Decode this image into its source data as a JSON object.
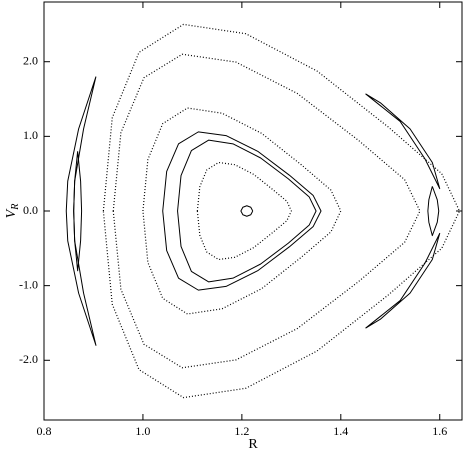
{
  "chart_data": {
    "type": "line",
    "xlabel": "R",
    "ylabel": "V",
    "ylabel_sub": "R",
    "xlim": [
      0.8,
      1.645
    ],
    "ylim": [
      -2.8,
      2.8
    ],
    "xticks": [
      0.8,
      {
        "value": 1,
        "label": "1.0"
      },
      1.2,
      1.4,
      1.6
    ],
    "yticks": [
      {
        "value": -2,
        "label": "-2.0"
      },
      {
        "value": -1,
        "label": "-1.0"
      },
      {
        "value": 0,
        "label": "0.0"
      },
      {
        "value": 1,
        "label": "1.0"
      },
      {
        "value": 2,
        "label": "2.0"
      }
    ],
    "series": [
      {
        "color": "#000000",
        "line_style": "dotted",
        "x": [
          0.92,
          0.938,
          0.992,
          1.082,
          1.208,
          1.352,
          1.496,
          1.604,
          1.64,
          1.604,
          1.496,
          1.352,
          1.208,
          1.082,
          0.992,
          0.938,
          0.92
        ],
        "y": [
          0,
          1.25,
          2.125,
          2.5,
          2.375,
          1.875,
          1.125,
          0.5,
          0,
          -0.5,
          -1.125,
          -1.875,
          -2.375,
          -2.5,
          -2.125,
          -1.25,
          0
        ]
      },
      {
        "color": "#000000",
        "line_style": "dotted",
        "x": [
          0.94,
          0.9555,
          1.002,
          1.0795,
          1.188,
          1.312,
          1.436,
          1.529,
          1.56,
          1.529,
          1.436,
          1.312,
          1.188,
          1.0795,
          1.002,
          0.9555,
          0.94
        ],
        "y": [
          0,
          1.05,
          1.785,
          2.1,
          1.995,
          1.575,
          0.945,
          0.42,
          0,
          -0.42,
          -0.945,
          -1.575,
          -1.995,
          -2.1,
          -1.785,
          -1.05,
          0
        ]
      },
      {
        "color": "#000000",
        "line_style": "dotted",
        "x": [
          1.0,
          1.01,
          1.04,
          1.09,
          1.16,
          1.24,
          1.32,
          1.38,
          1.4,
          1.38,
          1.32,
          1.24,
          1.16,
          1.09,
          1.04,
          1.01,
          1.0
        ],
        "y": [
          0,
          0.69,
          1.17,
          1.38,
          1.31,
          1.04,
          0.62,
          0.28,
          0,
          -0.28,
          -0.62,
          -1.04,
          -1.31,
          -1.38,
          -1.17,
          -0.69,
          0
        ]
      },
      {
        "color": "#000000",
        "line_style": "solid",
        "x": [
          1.04,
          1.048,
          1.072,
          1.112,
          1.168,
          1.232,
          1.296,
          1.344,
          1.36,
          1.344,
          1.296,
          1.232,
          1.168,
          1.112,
          1.072,
          1.048,
          1.04
        ],
        "y": [
          0,
          0.53,
          0.9,
          1.06,
          1.01,
          0.8,
          0.48,
          0.21,
          0,
          -0.21,
          -0.48,
          -0.8,
          -1.01,
          -1.06,
          -0.9,
          -0.53,
          0
        ]
      },
      {
        "color": "#000000",
        "line_style": "solid",
        "x": [
          1.07,
          1.077,
          1.098,
          1.133,
          1.182,
          1.238,
          1.294,
          1.336,
          1.35,
          1.336,
          1.294,
          1.238,
          1.182,
          1.133,
          1.098,
          1.077,
          1.07
        ],
        "y": [
          0,
          0.475,
          0.81,
          0.95,
          0.9,
          0.71,
          0.43,
          0.19,
          0,
          -0.19,
          -0.43,
          -0.71,
          -0.9,
          -0.95,
          -0.81,
          -0.475,
          0
        ]
      },
      {
        "color": "#000000",
        "line_style": "dotted",
        "x": [
          1.11,
          1.115,
          1.129,
          1.153,
          1.186,
          1.224,
          1.262,
          1.291,
          1.3,
          1.291,
          1.262,
          1.224,
          1.186,
          1.153,
          1.129,
          1.115,
          1.11
        ],
        "y": [
          0,
          0.325,
          0.55,
          0.65,
          0.62,
          0.49,
          0.29,
          0.13,
          0,
          -0.13,
          -0.29,
          -0.49,
          -0.62,
          -0.65,
          -0.55,
          -0.325,
          0
        ]
      },
      {
        "color": "#000000",
        "line_style": "solid",
        "x": [
          1.222,
          1.218,
          1.21,
          1.202,
          1.198,
          1.202,
          1.21,
          1.218,
          1.222
        ],
        "y": [
          0,
          0.05,
          0.07,
          0.05,
          0,
          -0.05,
          -0.07,
          -0.05,
          0
        ]
      },
      {
        "color": "#000000",
        "line_style": "solid",
        "x": [
          0.905,
          0.87,
          0.848,
          0.845,
          0.848,
          0.87,
          0.905,
          0.88,
          0.862,
          0.86,
          0.862,
          0.88,
          0.905
        ],
        "y": [
          1.8,
          1.1,
          0.4,
          0,
          -0.4,
          -1.1,
          -1.8,
          -1.1,
          -0.4,
          0,
          0.4,
          1.1,
          1.8
        ]
      },
      {
        "color": "#000000",
        "line_style": "solid",
        "x": [
          0.868,
          0.862,
          0.86,
          0.862,
          0.868,
          0.874,
          0.876,
          0.874,
          0.868
        ],
        "y": [
          0.8,
          0.4,
          0,
          -0.4,
          -0.8,
          -0.4,
          0,
          0.4,
          0.8
        ]
      },
      {
        "color": "#000000",
        "line_style": "solid",
        "x": [
          1.45,
          1.52,
          1.57,
          1.6,
          1.585,
          1.54,
          1.48,
          1.45
        ],
        "y": [
          1.57,
          1.2,
          0.7,
          0.3,
          0.65,
          1.1,
          1.45,
          1.57
        ]
      },
      {
        "color": "#000000",
        "line_style": "solid",
        "x": [
          1.45,
          1.52,
          1.57,
          1.6,
          1.585,
          1.54,
          1.48,
          1.45
        ],
        "y": [
          -1.57,
          -1.2,
          -0.7,
          -0.3,
          -0.65,
          -1.1,
          -1.45,
          -1.57
        ]
      },
      {
        "color": "#000000",
        "line_style": "solid",
        "x": [
          1.585,
          1.595,
          1.598,
          1.595,
          1.585,
          1.578,
          1.576,
          1.578,
          1.585
        ],
        "y": [
          0.33,
          0.15,
          0,
          -0.15,
          -0.33,
          -0.15,
          0,
          0.15,
          0.33
        ]
      }
    ]
  }
}
